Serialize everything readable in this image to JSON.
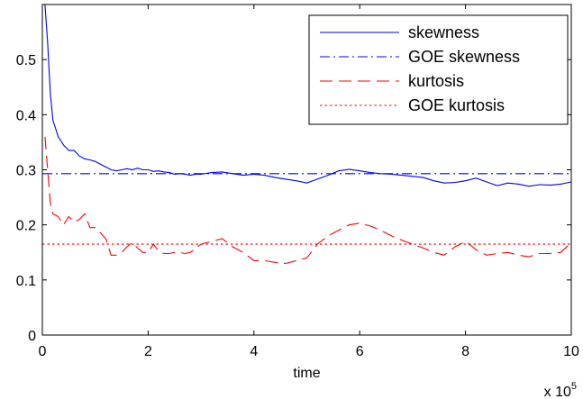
{
  "chart_data": {
    "type": "line",
    "xlabel": "time",
    "x_multiplier_label": "x 10",
    "x_multiplier_exponent": "5",
    "ylabel": "",
    "title": "",
    "xlim": [
      0,
      10
    ],
    "ylim": [
      0,
      0.6
    ],
    "xticks": [
      0,
      2,
      4,
      6,
      8,
      10
    ],
    "xtick_labels": [
      "0",
      "2",
      "4",
      "6",
      "8",
      "10"
    ],
    "yticks": [
      0,
      0.1,
      0.2,
      0.3,
      0.4,
      0.5
    ],
    "ytick_labels": [
      "0",
      "0.1",
      "0.2",
      "0.3",
      "0.4",
      "0.5"
    ],
    "grid": false,
    "legend_position": "top-right",
    "series": [
      {
        "name": "skewness",
        "color": "#0000ff",
        "dash": "solid",
        "x": [
          0.05,
          0.1,
          0.15,
          0.2,
          0.3,
          0.4,
          0.5,
          0.6,
          0.7,
          0.8,
          0.9,
          1.0,
          1.1,
          1.2,
          1.3,
          1.4,
          1.5,
          1.6,
          1.7,
          1.8,
          1.9,
          2.0,
          2.1,
          2.2,
          2.3,
          2.4,
          2.5,
          2.6,
          2.7,
          2.8,
          2.9,
          3.0,
          3.2,
          3.4,
          3.6,
          3.8,
          4.0,
          4.2,
          4.4,
          4.6,
          4.8,
          5.0,
          5.2,
          5.4,
          5.6,
          5.8,
          6.0,
          6.2,
          6.4,
          6.6,
          6.8,
          7.0,
          7.2,
          7.4,
          7.6,
          7.8,
          8.0,
          8.2,
          8.4,
          8.6,
          8.8,
          9.0,
          9.2,
          9.4,
          9.6,
          9.8,
          10.0
        ],
        "y": [
          0.6,
          0.53,
          0.44,
          0.39,
          0.36,
          0.345,
          0.335,
          0.335,
          0.325,
          0.32,
          0.318,
          0.315,
          0.31,
          0.305,
          0.3,
          0.298,
          0.3,
          0.302,
          0.3,
          0.303,
          0.3,
          0.3,
          0.297,
          0.298,
          0.296,
          0.295,
          0.292,
          0.293,
          0.292,
          0.29,
          0.292,
          0.292,
          0.295,
          0.296,
          0.293,
          0.29,
          0.292,
          0.29,
          0.286,
          0.283,
          0.28,
          0.276,
          0.283,
          0.29,
          0.298,
          0.301,
          0.298,
          0.295,
          0.293,
          0.292,
          0.29,
          0.288,
          0.286,
          0.28,
          0.276,
          0.277,
          0.28,
          0.285,
          0.278,
          0.271,
          0.276,
          0.274,
          0.27,
          0.273,
          0.272,
          0.274,
          0.278
        ]
      },
      {
        "name": "GOE skewness",
        "color": "#0000ff",
        "dash": "dash-dot",
        "x": [
          0,
          10
        ],
        "y": [
          0.293,
          0.293
        ]
      },
      {
        "name": "kurtosis",
        "color": "#ff0000",
        "dash": "dashed",
        "x": [
          0.05,
          0.1,
          0.15,
          0.2,
          0.3,
          0.4,
          0.5,
          0.6,
          0.7,
          0.8,
          0.9,
          1.0,
          1.1,
          1.2,
          1.3,
          1.4,
          1.5,
          1.6,
          1.7,
          1.8,
          1.9,
          2.0,
          2.1,
          2.2,
          2.3,
          2.4,
          2.5,
          2.6,
          2.7,
          2.8,
          2.9,
          3.0,
          3.2,
          3.4,
          3.6,
          3.8,
          4.0,
          4.2,
          4.4,
          4.6,
          4.8,
          5.0,
          5.2,
          5.4,
          5.6,
          5.8,
          6.0,
          6.2,
          6.4,
          6.6,
          6.8,
          7.0,
          7.2,
          7.4,
          7.6,
          7.8,
          8.0,
          8.2,
          8.4,
          8.6,
          8.8,
          9.0,
          9.2,
          9.4,
          9.6,
          9.8,
          10.0
        ],
        "y": [
          0.36,
          0.3,
          0.24,
          0.22,
          0.215,
          0.2,
          0.215,
          0.205,
          0.21,
          0.22,
          0.195,
          0.195,
          0.185,
          0.175,
          0.145,
          0.145,
          0.15,
          0.16,
          0.168,
          0.158,
          0.15,
          0.15,
          0.165,
          0.152,
          0.148,
          0.148,
          0.15,
          0.15,
          0.148,
          0.15,
          0.158,
          0.165,
          0.17,
          0.175,
          0.16,
          0.15,
          0.135,
          0.135,
          0.132,
          0.13,
          0.135,
          0.14,
          0.165,
          0.18,
          0.19,
          0.2,
          0.203,
          0.198,
          0.19,
          0.18,
          0.172,
          0.165,
          0.158,
          0.15,
          0.145,
          0.16,
          0.17,
          0.155,
          0.145,
          0.148,
          0.15,
          0.145,
          0.142,
          0.148,
          0.148,
          0.15,
          0.168
        ]
      },
      {
        "name": "GOE kurtosis",
        "color": "#ff0000",
        "dash": "dotted",
        "x": [
          0,
          10
        ],
        "y": [
          0.165,
          0.165
        ]
      }
    ]
  }
}
